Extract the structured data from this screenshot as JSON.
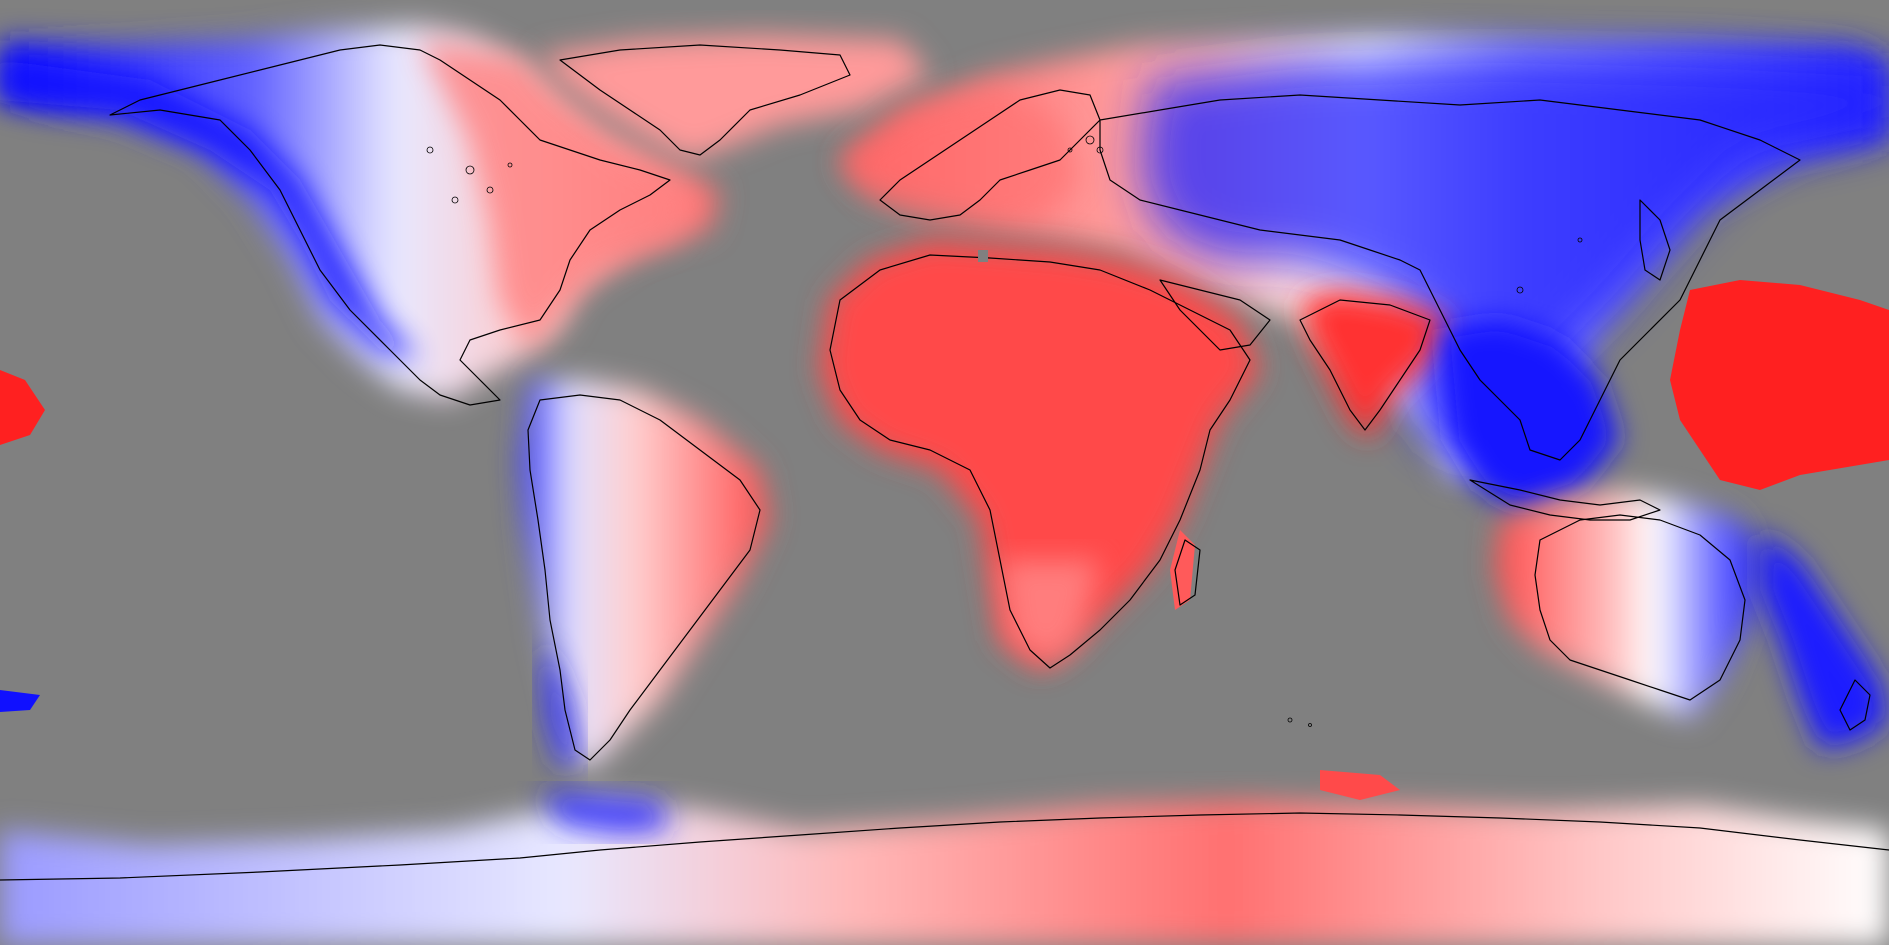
{
  "map": {
    "type": "equirectangular-anomaly-map",
    "background_color": "#808080",
    "colors": {
      "strong_positive": "#ff2a2a",
      "mid_positive": "#ff7a7a",
      "weak_positive": "#ffd2d2",
      "neutral": "#ffffff",
      "weak_negative": "#d0d0ff",
      "mid_negative": "#7a7aff",
      "strong_negative": "#1010ff",
      "coastline": "#000000"
    },
    "graticule": false,
    "colorbar": false
  }
}
